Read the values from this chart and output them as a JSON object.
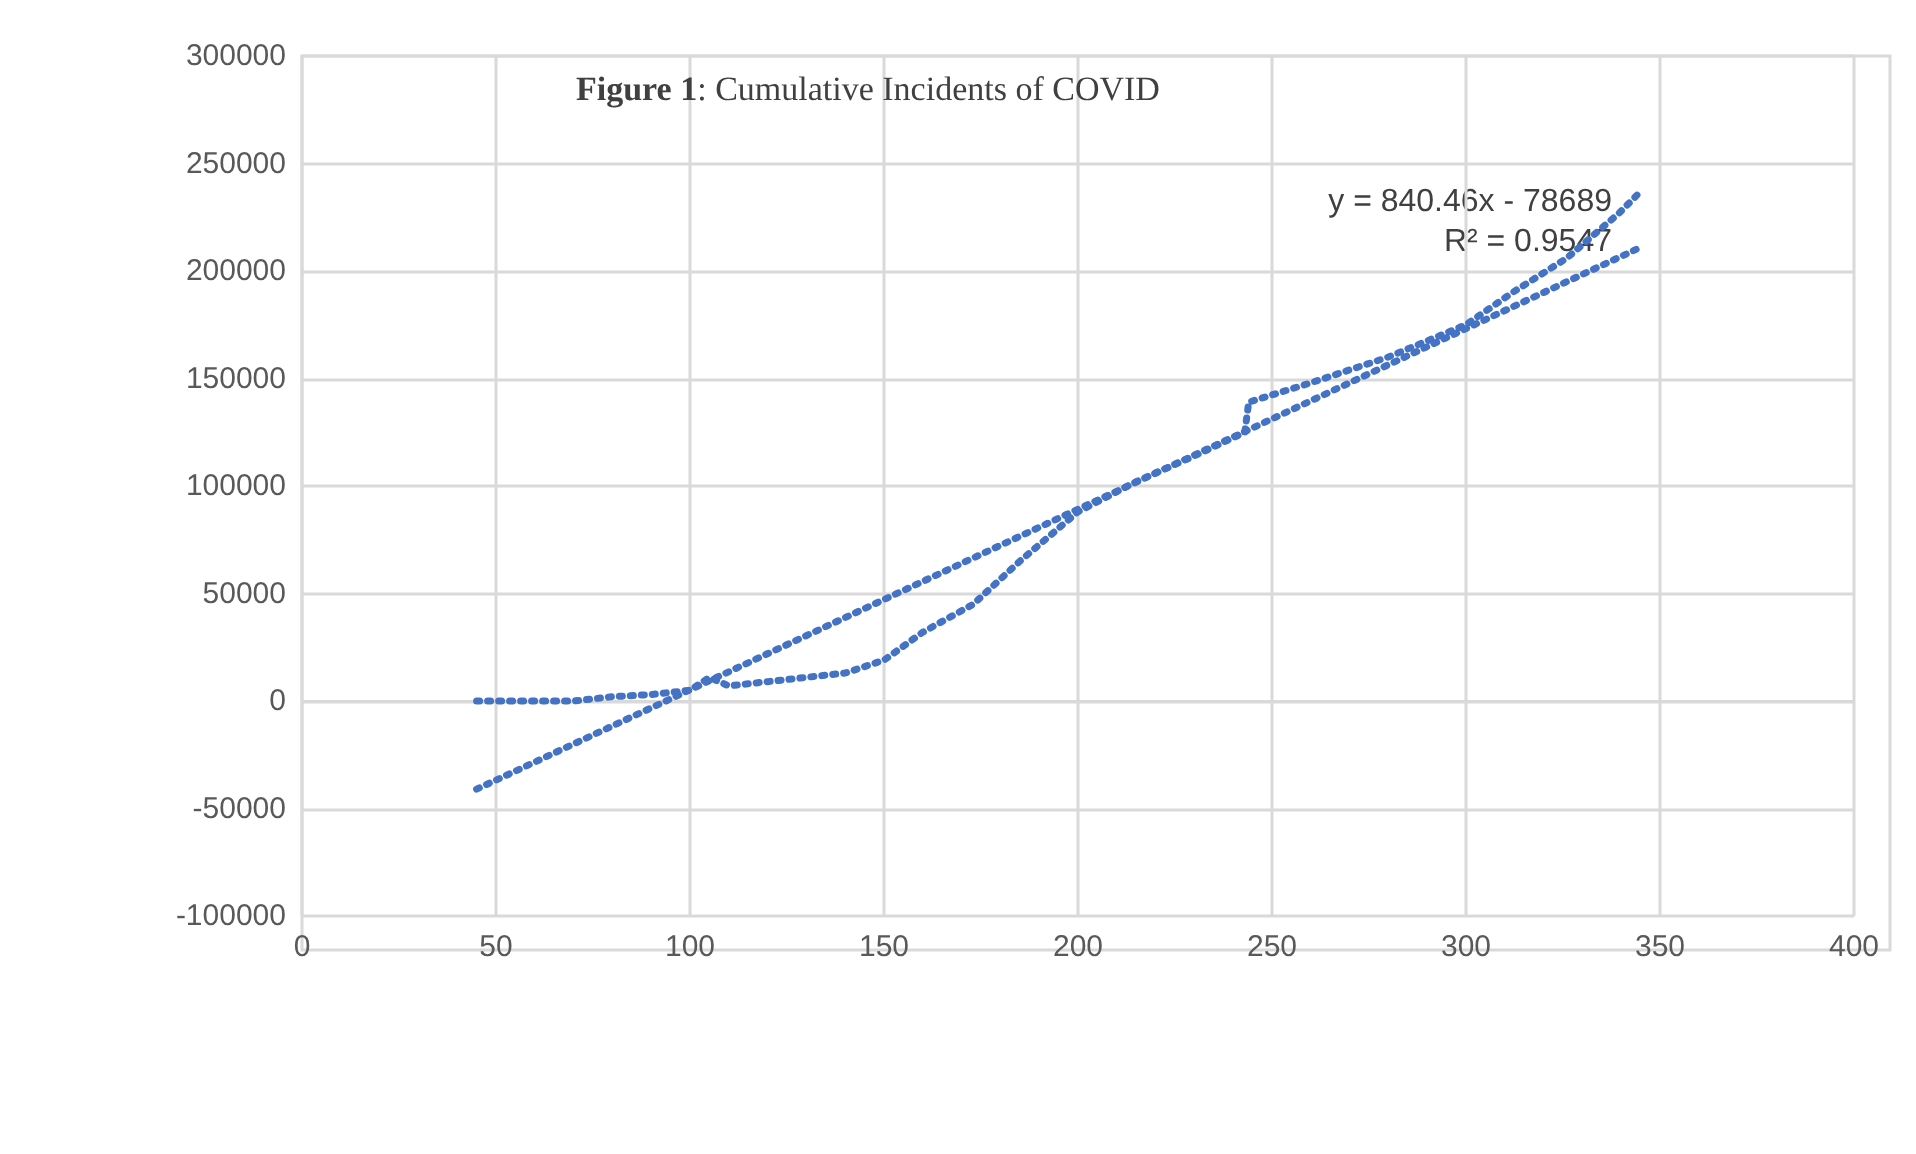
{
  "chart_data": {
    "type": "line",
    "title": "Figure 1: Cumulative Incidents of COVID",
    "xlim": [
      0,
      400
    ],
    "xticks": [
      0,
      50,
      100,
      150,
      200,
      250,
      300,
      350,
      400
    ],
    "ylim": [
      -100000,
      300000
    ],
    "yticks": [
      -100000,
      -50000,
      0,
      50000,
      100000,
      150000,
      200000,
      250000,
      300000
    ],
    "grid": true,
    "line_style": "dotted",
    "marker": "none",
    "series": [
      {
        "color": "#4472c4",
        "x": [
          45,
          60,
          70,
          80,
          90,
          100,
          105,
          110,
          120,
          130,
          140,
          150,
          160,
          173,
          185,
          200,
          215,
          230,
          243,
          244,
          260,
          280,
          300,
          312,
          326,
          339.5,
          345
        ],
        "values": [
          0,
          0,
          0,
          2000,
          3000,
          5000,
          11000,
          7000,
          9000,
          11000,
          13000,
          19000,
          32000,
          45000,
          65000,
          88000,
          102000,
          114000,
          125000,
          139000,
          148000,
          160000,
          175000,
          190000,
          206000,
          227000,
          237000
        ]
      },
      {
        "color": "#4472c4",
        "x": [
          45,
          345
        ],
        "values": [
          -41000,
          211000
        ]
      }
    ],
    "annotations": [
      "y = 840.46x - 78689",
      "R² = 0.9547"
    ]
  }
}
